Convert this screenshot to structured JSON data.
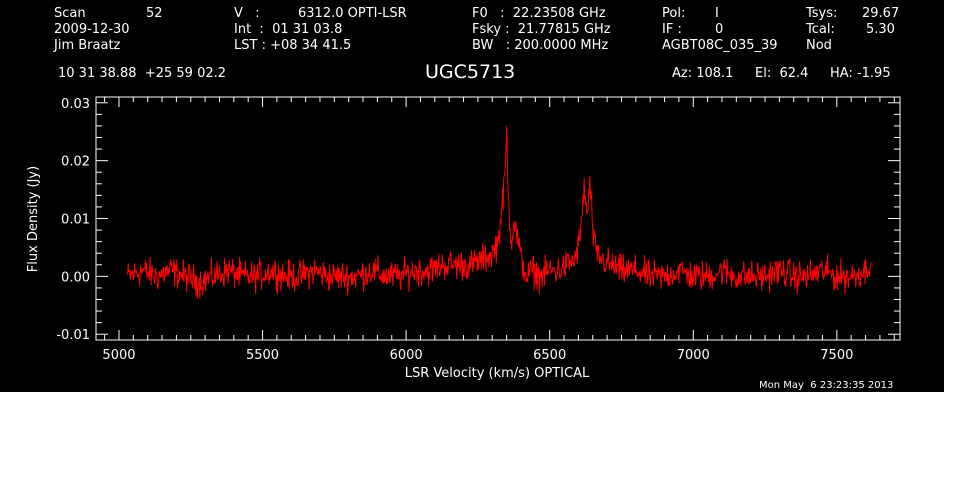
{
  "header": {
    "row1": [
      "Scan",
      "52",
      "V   :",
      "6312.0 OPTI-LSR",
      "F0   :  22.23508 GHz",
      "Pol:",
      "I",
      "Tsys:",
      "29.67"
    ],
    "row2": [
      "2009-12-30",
      "Int  :  01 31 03.8",
      "Fsky :  21.77815 GHz",
      "IF :",
      "0",
      "Tcal:",
      "5.30"
    ],
    "row3": [
      "Jim Braatz",
      "LST : +08 34 41.5",
      "BW   : 200.0000 MHz",
      "AGBT08C_035_39",
      "Nod"
    ],
    "coords": "10 31 38.88  +25 59 02.2",
    "source": "UGC5713",
    "az": "Az: 108.1",
    "el": "El:  62.4",
    "ha": "HA: -1.95"
  },
  "timestamp": "Mon May  6 23:23:35 2013",
  "colors": {
    "background": "#000000",
    "axes": "#ffffff",
    "trace": "#ff0000"
  },
  "chart_data": {
    "type": "line",
    "xlabel": "LSR Velocity (km/s) OPTICAL",
    "ylabel": "Flux Density (Jy)",
    "xlim": [
      4920,
      7720
    ],
    "ylim": [
      -0.011,
      0.031
    ],
    "xticks": [
      5000,
      5500,
      6000,
      6500,
      7000,
      7500
    ],
    "xtick_labels": [
      "5000",
      "5500",
      "6000",
      "6500",
      "7000",
      "7500"
    ],
    "yticks": [
      -0.01,
      0.0,
      0.01,
      0.02,
      0.03
    ],
    "ytick_labels": [
      "-0.01",
      "0.00",
      "0.01",
      "0.02",
      "0.03"
    ],
    "grid": false,
    "series": [
      {
        "color": "#ff0000",
        "x": [
          5030,
          5080,
          5130,
          5180,
          5230,
          5280,
          5330,
          5380,
          5430,
          5480,
          5530,
          5580,
          5630,
          5680,
          5730,
          5780,
          5830,
          5880,
          5930,
          5980,
          6030,
          6080,
          6130,
          6180,
          6230,
          6270,
          6300,
          6320,
          6335,
          6345,
          6350,
          6355,
          6360,
          6368,
          6375,
          6382,
          6390,
          6400,
          6420,
          6440,
          6470,
          6500,
          6530,
          6560,
          6590,
          6610,
          6620,
          6630,
          6640,
          6650,
          6660,
          6680,
          6710,
          6750,
          6800,
          6850,
          6900,
          6950,
          7000,
          7050,
          7100,
          7150,
          7200,
          7250,
          7300,
          7350,
          7400,
          7450,
          7500,
          7550,
          7600,
          7620
        ],
        "y": [
          0.0,
          0.001,
          0.0,
          0.001,
          0.0,
          -0.001,
          0.0,
          0.001,
          0.0,
          0.0,
          0.001,
          0.0,
          0.0,
          0.001,
          0.0,
          0.0,
          0.0,
          0.001,
          0.0,
          0.0,
          0.001,
          0.001,
          0.002,
          0.002,
          0.002,
          0.003,
          0.004,
          0.006,
          0.012,
          0.018,
          0.025,
          0.015,
          0.01,
          0.006,
          0.01,
          0.008,
          0.006,
          0.003,
          0.0,
          0.001,
          0.0,
          0.001,
          0.001,
          0.002,
          0.003,
          0.008,
          0.016,
          0.01,
          0.016,
          0.008,
          0.004,
          0.003,
          0.002,
          0.001,
          0.001,
          0.0,
          0.0,
          0.001,
          0.0,
          0.0,
          0.001,
          0.0,
          0.0,
          0.0,
          0.001,
          0.0,
          0.0,
          0.001,
          0.0,
          0.0,
          0.001,
          0.003
        ]
      }
    ]
  }
}
